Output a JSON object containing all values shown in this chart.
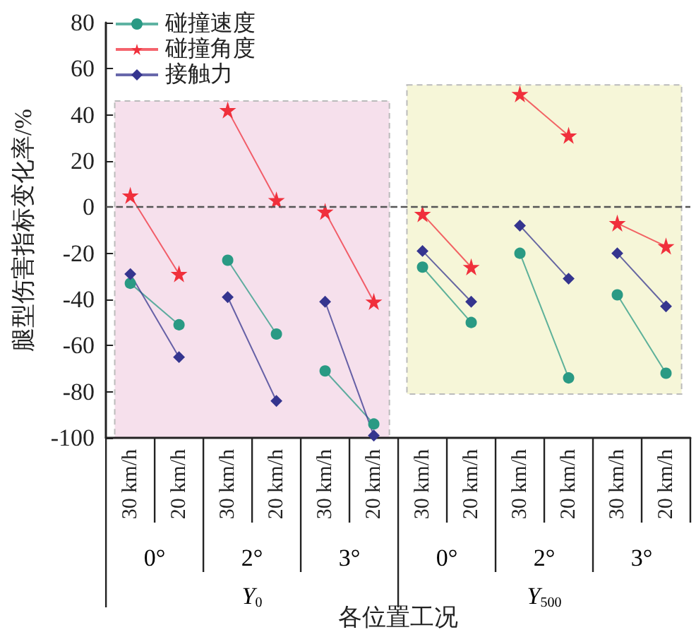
{
  "chart_data": {
    "type": "line",
    "ylabel": "腿型伤害指标变化率/%",
    "xlabel": "各位置工况",
    "categories": [
      "30 km/h",
      "20 km/h",
      "30 km/h",
      "20 km/h",
      "30 km/h",
      "20 km/h",
      "30 km/h",
      "20 km/h",
      "30 km/h",
      "20 km/h",
      "30 km/h",
      "20 km/h"
    ],
    "series": [
      {
        "name": "碰撞速度",
        "color": "#2a9a84",
        "marker": "circle",
        "values": [
          -33,
          -51,
          -23,
          -55,
          -71,
          -94,
          -26,
          -50,
          -20,
          -74,
          -38,
          -72
        ]
      },
      {
        "name": "碰撞角度",
        "color": "#f0303c",
        "marker": "star",
        "values": [
          5,
          -29,
          42,
          3,
          -2,
          -41,
          -3,
          -26,
          49,
          31,
          -7,
          -17
        ]
      },
      {
        "name": "接触力",
        "color": "#35358f",
        "marker": "diamond",
        "values": [
          -29,
          -65,
          -39,
          -84,
          -41,
          -99,
          -19,
          -41,
          -8,
          -31,
          -20,
          -43
        ]
      }
    ],
    "annotations": [
      "0°",
      "2°",
      "3°",
      "0°",
      "2°",
      "3°",
      "Y$_{0}$",
      "Y$_{500}$"
    ],
    "bands": [
      {
        "axis": "y",
        "from": -100,
        "to": 46,
        "color": "#f6e0ec"
      },
      {
        "axis": "y",
        "from": -81,
        "to": 53,
        "color": "#f6f6d8"
      }
    ],
    "ref_lines": [
      {
        "axis": "y",
        "value": 0,
        "line_style": "dashed",
        "color": "#555555"
      }
    ],
    "ylim": [
      -100,
      80
    ],
    "yticks": [
      -100,
      -80,
      -60,
      -40,
      -20,
      0,
      20,
      40,
      60,
      80
    ],
    "legend": "top left",
    "grid": false
  }
}
